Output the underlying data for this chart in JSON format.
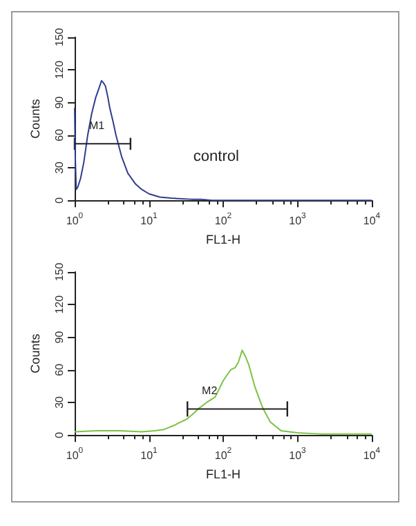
{
  "chart_data": [
    {
      "type": "line",
      "xlabel": "FL1-H",
      "ylabel": "Counts",
      "log": "x",
      "xlim": [
        1,
        10000
      ],
      "ylim": [
        0,
        150
      ],
      "xticks": [
        {
          "value": 1,
          "label": "10$^{0}$"
        },
        {
          "value": 10,
          "label": "10$^{1}$"
        },
        {
          "value": 100,
          "label": "10$^{2}$"
        },
        {
          "value": 1000,
          "label": "10$^{3}$"
        },
        {
          "value": 10000,
          "label": "10$^{4}$"
        }
      ],
      "yticks": [
        0,
        30,
        60,
        90,
        120,
        150
      ],
      "grid": false,
      "marker": "none",
      "line_style": "solid",
      "annotations": [
        "control"
      ],
      "series": [
        {
          "color": "#2e3d8c",
          "x": [
            1,
            1.02,
            1.05,
            1.1,
            1.2,
            1.33,
            1.5,
            1.7,
            1.93,
            2.1,
            2.3,
            2.45,
            2.6,
            2.8,
            2.97,
            3.3,
            3.6,
            4.3,
            5.2,
            6.6,
            8,
            10,
            14,
            20,
            37,
            50,
            70,
            200,
            1000,
            10000
          ],
          "values": [
            85,
            40,
            10,
            12,
            20,
            35,
            60,
            80,
            95,
            102,
            110,
            108,
            105,
            95,
            85,
            72,
            60,
            40,
            25,
            15,
            10,
            6,
            3,
            2,
            1,
            1,
            0,
            0,
            0,
            0
          ]
        },
        {
          "type": "line",
          "name": "M1",
          "color": "#222222",
          "x": [
            1,
            5.65
          ],
          "values": [
            52,
            52
          ],
          "errors": [
            5.5,
            5.5
          ]
        }
      ]
    },
    {
      "type": "line",
      "xlabel": "FL1-H",
      "ylabel": "Counts",
      "log": "x",
      "xlim": [
        1,
        10000
      ],
      "ylim": [
        0,
        150
      ],
      "xticks": [
        {
          "value": 1,
          "label": "10$^{0}$"
        },
        {
          "value": 10,
          "label": "10$^{1}$"
        },
        {
          "value": 100,
          "label": "10$^{2}$"
        },
        {
          "value": 1000,
          "label": "10$^{3}$"
        },
        {
          "value": 10000,
          "label": "10$^{4}$"
        }
      ],
      "yticks": [
        0,
        30,
        60,
        90,
        120,
        150
      ],
      "grid": false,
      "marker": "none",
      "line_style": "solid",
      "series": [
        {
          "color": "#7cc242",
          "x": [
            1,
            2,
            4,
            8,
            12,
            15.8,
            22,
            33,
            40,
            48,
            60,
            78,
            100,
            126,
            145,
            160,
            180,
            200,
            220,
            265,
            340,
            430,
            600,
            1000,
            2000,
            5000,
            10000
          ],
          "values": [
            3,
            4,
            4,
            3,
            4,
            5,
            9,
            15,
            20,
            25,
            30,
            35,
            50,
            60,
            62,
            67,
            78,
            72,
            65,
            45,
            25,
            12,
            4,
            2,
            1,
            1,
            1
          ]
        },
        {
          "type": "line",
          "name": "M2",
          "color": "#222222",
          "x": [
            33,
            730
          ],
          "values": [
            24,
            24
          ],
          "errors": [
            7,
            7
          ]
        }
      ]
    }
  ]
}
